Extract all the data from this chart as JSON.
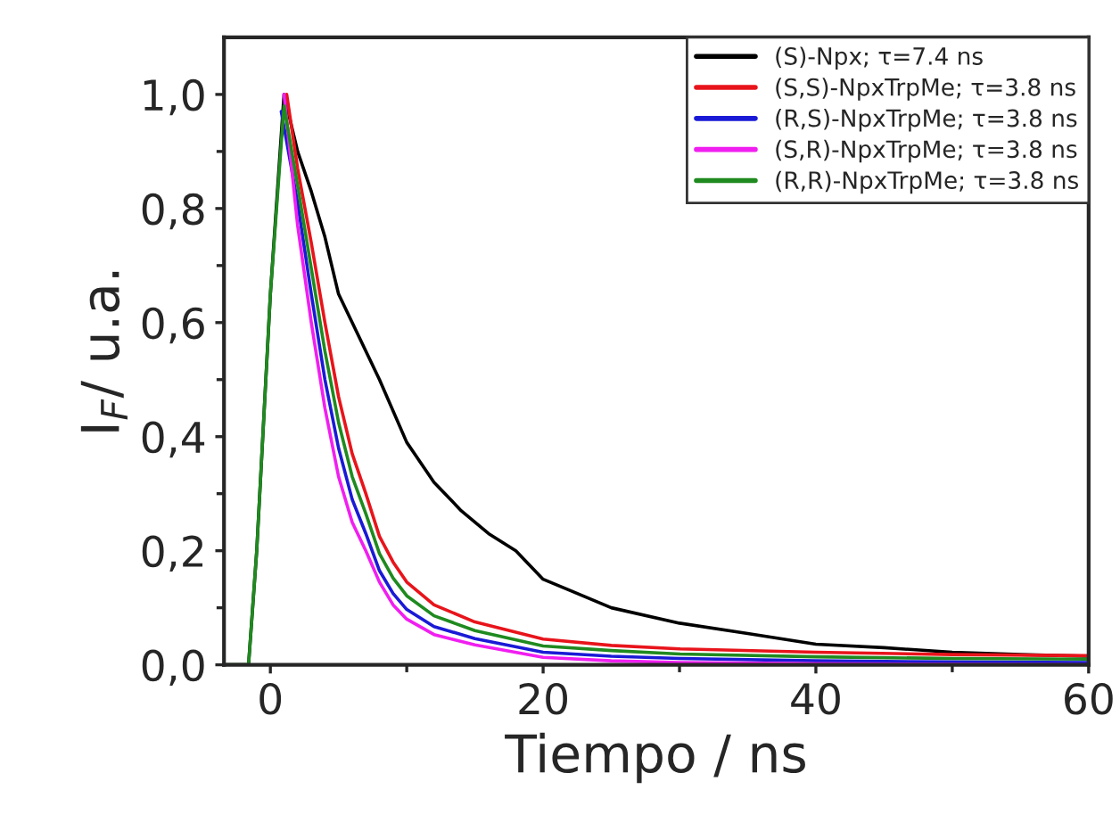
{
  "chart_data": {
    "type": "line",
    "xlabel": "Tiempo / ns",
    "ylabel": "I$_{F}$/ u.a.",
    "xlim": [
      -3.4,
      60
    ],
    "ylim": [
      0,
      1.1
    ],
    "xticks": [
      0,
      {
        "value": 10,
        "label": null
      },
      20,
      {
        "value": 30,
        "label": null
      },
      40,
      {
        "value": 50,
        "label": null
      },
      60
    ],
    "yticks": [
      {
        "value": 0,
        "label": "0,0"
      },
      {
        "value": 0.1,
        "label": null
      },
      {
        "value": 0.2,
        "label": "0,2"
      },
      {
        "value": 0.3,
        "label": null
      },
      {
        "value": 0.4,
        "label": "0,4"
      },
      {
        "value": 0.5,
        "label": null
      },
      {
        "value": 0.6,
        "label": "0,6"
      },
      {
        "value": 0.7,
        "label": null
      },
      {
        "value": 0.8,
        "label": "0,8"
      },
      {
        "value": 0.9,
        "label": null
      },
      {
        "value": 1.0,
        "label": "1,0"
      }
    ],
    "legend": "top right",
    "grid": false,
    "marker": "none",
    "line_style": "solid",
    "series": [
      {
        "name": "(S)-Npx; τ=7.4 ns",
        "color": "#000000",
        "x": [
          -3.4,
          -1.6,
          -1.0,
          0,
          1,
          2,
          3,
          4,
          5,
          6,
          8,
          10,
          12,
          14,
          16,
          18,
          20,
          22,
          25,
          30,
          35,
          40,
          45,
          50,
          55,
          60
        ],
        "values": [
          0,
          0,
          0.2,
          0.65,
          1.0,
          0.9,
          0.83,
          0.75,
          0.65,
          0.6,
          0.5,
          0.39,
          0.32,
          0.27,
          0.23,
          0.2,
          0.15,
          0.13,
          0.1,
          0.073,
          0.055,
          0.036,
          0.03,
          0.022,
          0.018,
          0.015
        ]
      },
      {
        "name": "(S,S)-NpxTrpMe; τ=3.8 ns",
        "color": "#e8141b",
        "x": [
          1.2,
          2,
          3,
          4,
          5,
          6,
          7,
          8,
          9,
          10,
          12,
          15,
          20,
          25,
          30,
          40,
          50,
          60
        ],
        "values": [
          1.0,
          0.87,
          0.74,
          0.6,
          0.47,
          0.37,
          0.3,
          0.225,
          0.18,
          0.145,
          0.105,
          0.075,
          0.045,
          0.034,
          0.028,
          0.022,
          0.018,
          0.016
        ]
      },
      {
        "name": "(R,S)-NpxTrpMe; τ=3.8 ns",
        "color": "#1a1ad6",
        "x": [
          0.8,
          2,
          3,
          4,
          5,
          6,
          7,
          8,
          9,
          10,
          12,
          15,
          20,
          25,
          30,
          40,
          50,
          60
        ],
        "values": [
          0.97,
          0.81,
          0.65,
          0.5,
          0.38,
          0.29,
          0.23,
          0.165,
          0.125,
          0.097,
          0.067,
          0.046,
          0.022,
          0.015,
          0.011,
          0.007,
          0.005,
          0.004
        ]
      },
      {
        "name": "(S,R)-NpxTrpMe; τ=3.8 ns",
        "color": "#f01ff0",
        "x": [
          1.0,
          2,
          3,
          4,
          5,
          6,
          7,
          8,
          9,
          10,
          12,
          15,
          20,
          25,
          30,
          40,
          50,
          60
        ],
        "values": [
          1.0,
          0.77,
          0.6,
          0.45,
          0.33,
          0.25,
          0.2,
          0.145,
          0.105,
          0.08,
          0.053,
          0.035,
          0.013,
          0.007,
          0.004,
          0.002,
          0.001,
          0.0
        ]
      },
      {
        "name": "(R,R)-NpxTrpMe; τ=3.8 ns",
        "color": "#1f8a1f",
        "x": [
          -3.4,
          -1.6,
          -1.0,
          0,
          1,
          2,
          3,
          4,
          5,
          6,
          7,
          8,
          9,
          10,
          12,
          15,
          20,
          25,
          30,
          40,
          50,
          60
        ],
        "values": [
          0,
          0,
          0.2,
          0.65,
          0.98,
          0.84,
          0.695,
          0.55,
          0.425,
          0.33,
          0.265,
          0.195,
          0.152,
          0.121,
          0.086,
          0.06,
          0.033,
          0.025,
          0.019,
          0.014,
          0.011,
          0.01
        ]
      }
    ]
  }
}
